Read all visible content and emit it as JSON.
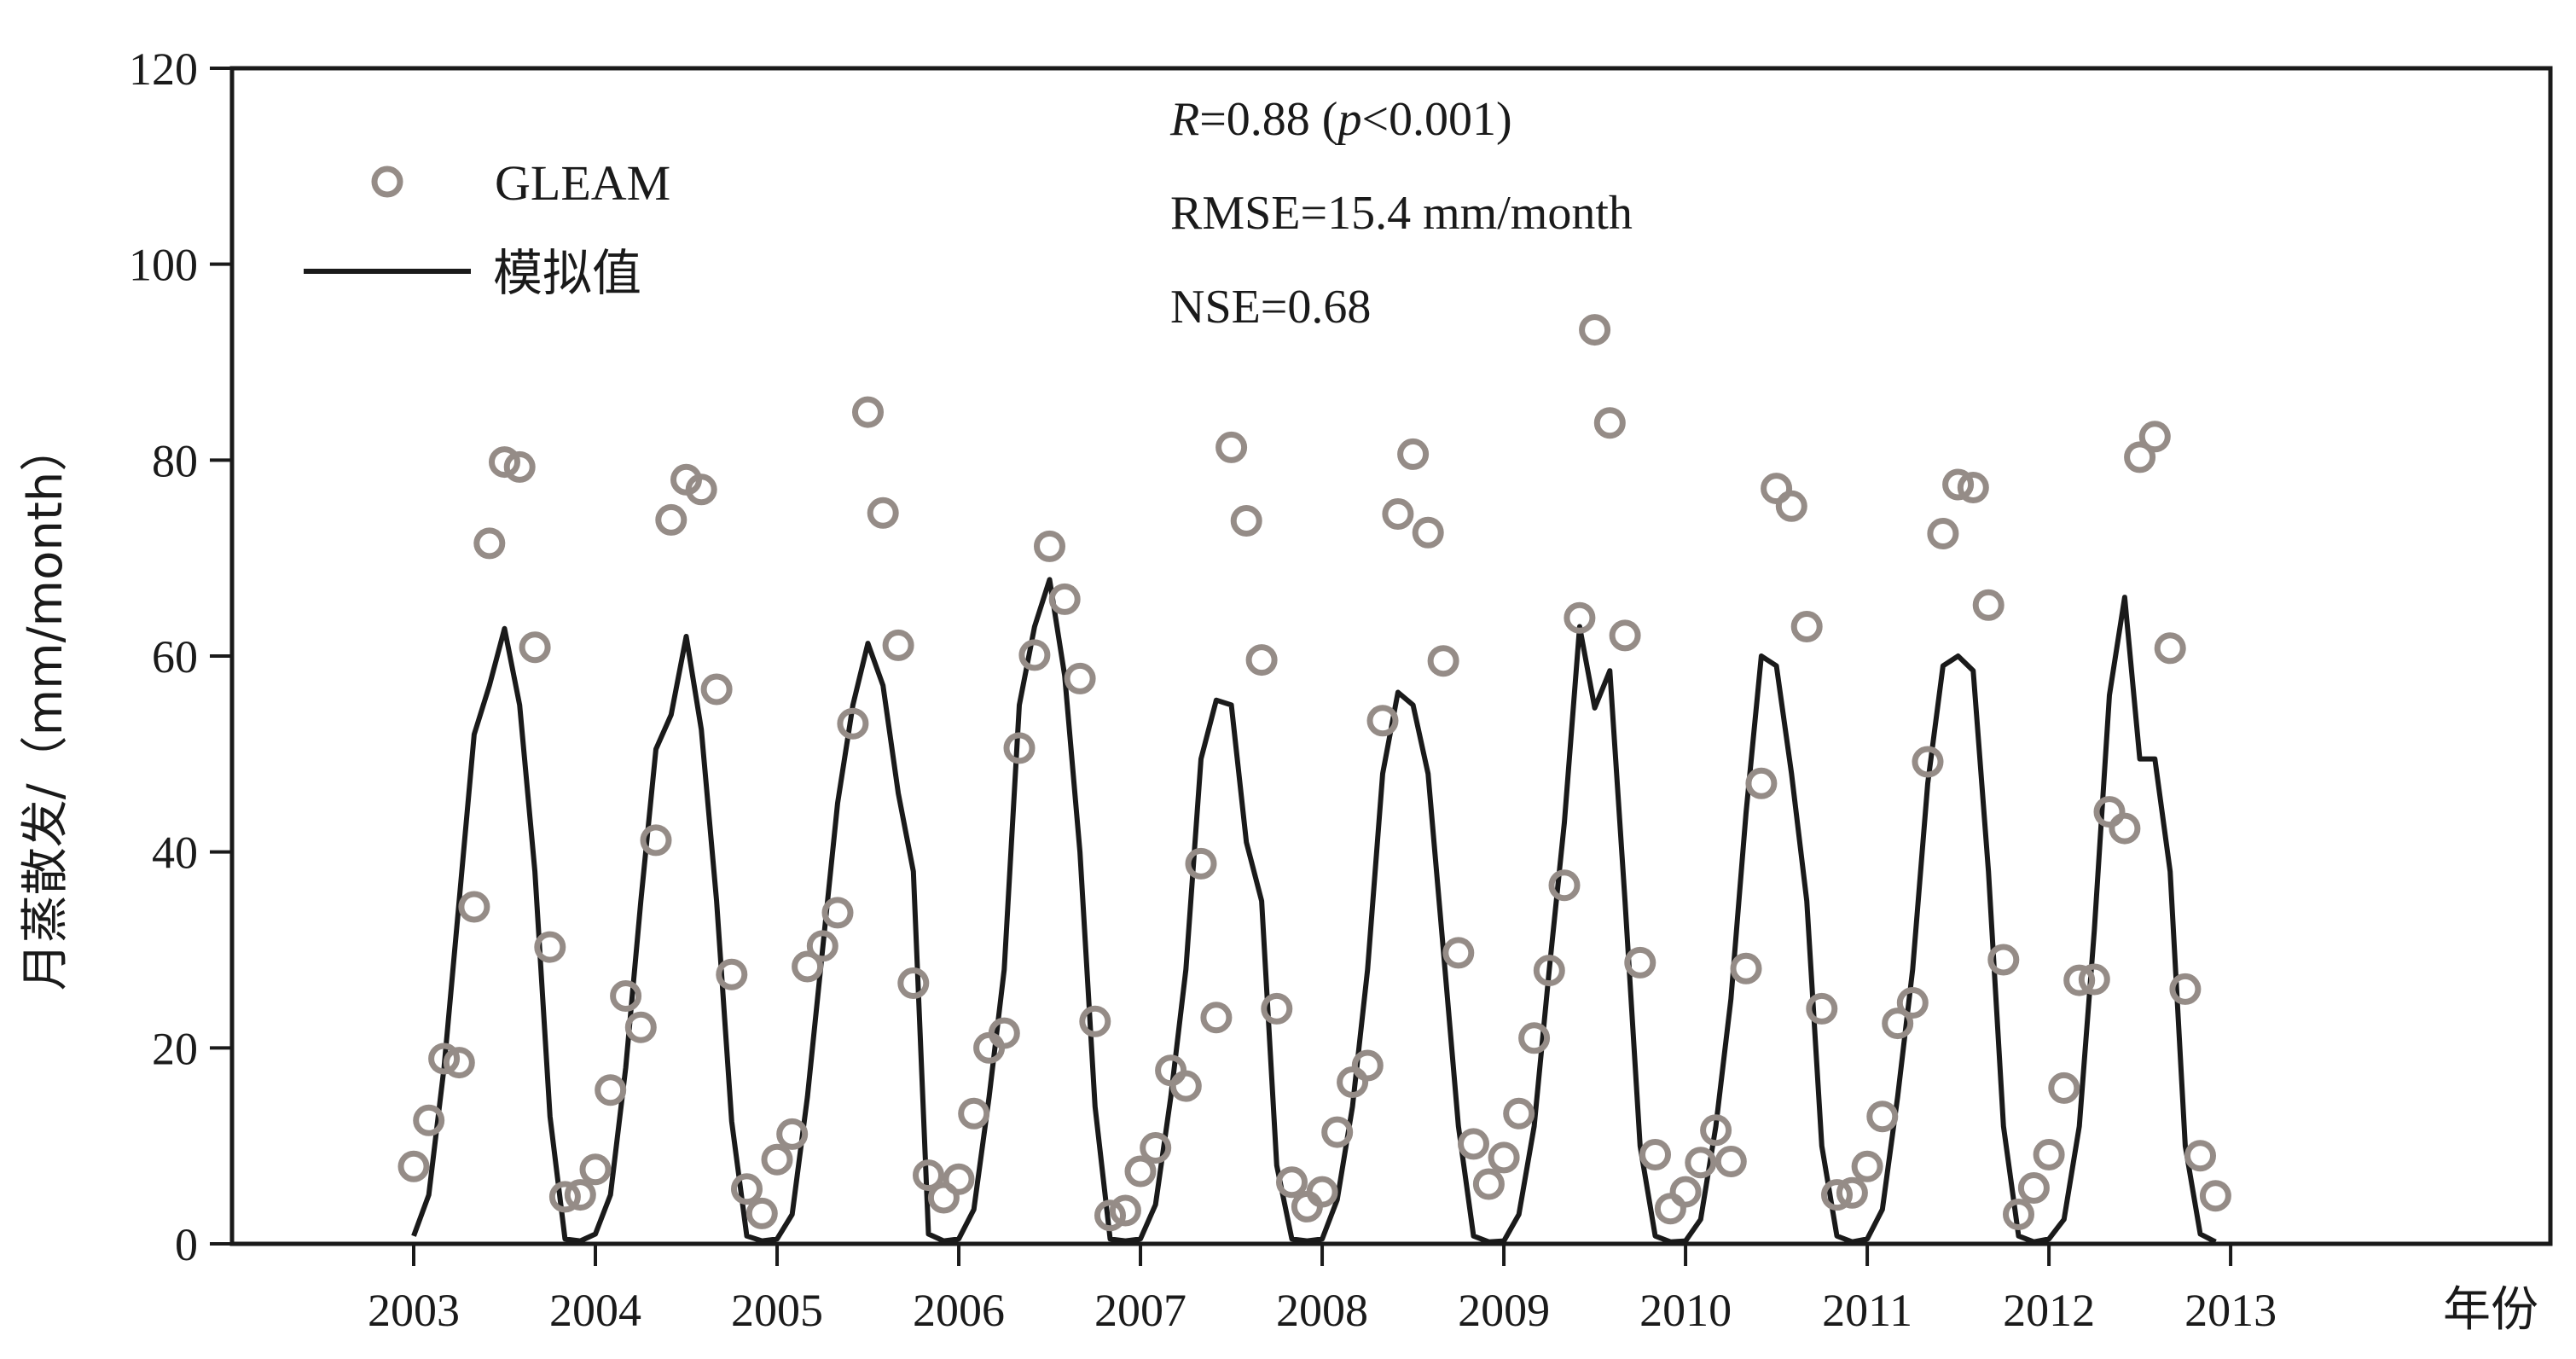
{
  "chart_data": {
    "type": "line",
    "ylabel": "月蒸散发/（mm/month）",
    "xlabel": "年份",
    "ylim": [
      0,
      120
    ],
    "xlim": [
      2002.0,
      2014.76
    ],
    "yticks": [
      0,
      20,
      40,
      60,
      80,
      100,
      120
    ],
    "xticks": [
      2003,
      2004,
      2005,
      2006,
      2007,
      2008,
      2009,
      2010,
      2011,
      2012,
      2013
    ],
    "legend_position": "top-left",
    "annotations": {
      "r_label": "R",
      "r_text": "=0.88 (",
      "p_label": "p",
      "p_text": "<0.001)",
      "rmse": "RMSE=15.4 mm/month",
      "nse": "NSE=0.68"
    },
    "series": [
      {
        "name": "GLEAM",
        "style": "markers",
        "color": "#958c87",
        "x": [
          2003.0,
          2003.083,
          2003.167,
          2003.25,
          2003.333,
          2003.417,
          2003.5,
          2003.583,
          2003.667,
          2003.75,
          2003.833,
          2003.917,
          2004.0,
          2004.083,
          2004.167,
          2004.25,
          2004.333,
          2004.417,
          2004.5,
          2004.583,
          2004.667,
          2004.75,
          2004.833,
          2004.917,
          2005.0,
          2005.083,
          2005.167,
          2005.25,
          2005.333,
          2005.417,
          2005.5,
          2005.583,
          2005.667,
          2005.75,
          2005.833,
          2005.917,
          2006.0,
          2006.083,
          2006.167,
          2006.25,
          2006.333,
          2006.417,
          2006.5,
          2006.583,
          2006.667,
          2006.75,
          2006.833,
          2006.917,
          2007.0,
          2007.083,
          2007.167,
          2007.25,
          2007.333,
          2007.417,
          2007.5,
          2007.583,
          2007.667,
          2007.75,
          2007.833,
          2007.917,
          2008.0,
          2008.083,
          2008.167,
          2008.25,
          2008.333,
          2008.417,
          2008.5,
          2008.583,
          2008.667,
          2008.75,
          2008.833,
          2008.917,
          2009.0,
          2009.083,
          2009.167,
          2009.25,
          2009.333,
          2009.417,
          2009.5,
          2009.583,
          2009.667,
          2009.75,
          2009.833,
          2009.917,
          2010.0,
          2010.083,
          2010.167,
          2010.25,
          2010.333,
          2010.417,
          2010.5,
          2010.583,
          2010.667,
          2010.75,
          2010.833,
          2010.917,
          2011.0,
          2011.083,
          2011.167,
          2011.25,
          2011.333,
          2011.417,
          2011.5,
          2011.583,
          2011.667,
          2011.75,
          2011.833,
          2011.917,
          2012.0,
          2012.083,
          2012.167,
          2012.25,
          2012.333,
          2012.417,
          2012.5,
          2012.583,
          2012.667,
          2012.75,
          2012.833,
          2012.917
        ],
        "y": [
          7.9,
          12.6,
          18.9,
          18.5,
          34.4,
          71.5,
          79.8,
          79.3,
          60.9,
          30.3,
          4.8,
          5.0,
          7.6,
          15.7,
          25.3,
          22.1,
          41.2,
          73.9,
          78.0,
          77.0,
          56.6,
          27.5,
          5.6,
          3.1,
          8.6,
          11.2,
          28.3,
          30.4,
          33.8,
          53.1,
          84.9,
          74.6,
          61.1,
          26.6,
          7.0,
          4.7,
          6.6,
          13.3,
          20.0,
          21.5,
          50.6,
          60.1,
          71.2,
          65.8,
          57.7,
          22.7,
          2.9,
          3.4,
          7.4,
          9.8,
          17.7,
          16.1,
          38.8,
          23.1,
          81.3,
          73.8,
          59.6,
          24.0,
          6.3,
          3.8,
          5.3,
          11.4,
          16.5,
          18.2,
          53.4,
          74.5,
          80.6,
          72.6,
          59.5,
          29.7,
          10.2,
          6.1,
          8.8,
          13.3,
          21.0,
          27.9,
          36.6,
          63.9,
          93.3,
          83.8,
          62.1,
          28.7,
          9.1,
          3.6,
          5.3,
          8.3,
          11.6,
          8.4,
          28.1,
          47.0,
          77.1,
          75.3,
          63.0,
          24.0,
          5.0,
          5.2,
          7.9,
          13.0,
          22.5,
          24.6,
          49.2,
          72.5,
          77.5,
          77.2,
          65.2,
          29.0,
          3.0,
          5.7,
          9.1,
          15.9,
          26.9,
          27.0,
          44.1,
          42.4,
          80.3,
          82.4,
          60.8,
          26.0,
          9.0,
          4.9
        ]
      },
      {
        "name": "模拟值",
        "style": "line",
        "color": "#1a1a1a",
        "x": [
          2003.0,
          2003.083,
          2003.167,
          2003.25,
          2003.333,
          2003.417,
          2003.5,
          2003.583,
          2003.667,
          2003.75,
          2003.833,
          2003.917,
          2004.0,
          2004.083,
          2004.167,
          2004.25,
          2004.333,
          2004.417,
          2004.5,
          2004.583,
          2004.667,
          2004.75,
          2004.833,
          2004.917,
          2005.0,
          2005.083,
          2005.167,
          2005.25,
          2005.333,
          2005.417,
          2005.5,
          2005.583,
          2005.667,
          2005.75,
          2005.833,
          2005.917,
          2006.0,
          2006.083,
          2006.167,
          2006.25,
          2006.333,
          2006.417,
          2006.5,
          2006.583,
          2006.667,
          2006.75,
          2006.833,
          2006.917,
          2007.0,
          2007.083,
          2007.167,
          2007.25,
          2007.333,
          2007.417,
          2007.5,
          2007.583,
          2007.667,
          2007.75,
          2007.833,
          2007.917,
          2008.0,
          2008.083,
          2008.167,
          2008.25,
          2008.333,
          2008.417,
          2008.5,
          2008.583,
          2008.667,
          2008.75,
          2008.833,
          2008.917,
          2009.0,
          2009.083,
          2009.167,
          2009.25,
          2009.333,
          2009.417,
          2009.5,
          2009.583,
          2009.667,
          2009.75,
          2009.833,
          2009.917,
          2010.0,
          2010.083,
          2010.167,
          2010.25,
          2010.333,
          2010.417,
          2010.5,
          2010.583,
          2010.667,
          2010.75,
          2010.833,
          2010.917,
          2011.0,
          2011.083,
          2011.167,
          2011.25,
          2011.333,
          2011.417,
          2011.5,
          2011.583,
          2011.667,
          2011.75,
          2011.833,
          2011.917,
          2012.0,
          2012.083,
          2012.167,
          2012.25,
          2012.333,
          2012.417,
          2012.5,
          2012.583,
          2012.667,
          2012.75,
          2012.833,
          2012.917
        ],
        "y": [
          0.8,
          5.0,
          18.0,
          35.0,
          52.0,
          57.0,
          62.8,
          55.0,
          38.0,
          13.0,
          0.5,
          0.3,
          1.0,
          5.0,
          18.0,
          35.0,
          50.5,
          54.0,
          62.0,
          52.5,
          35.0,
          12.5,
          0.8,
          0.3,
          0.5,
          3.0,
          15.0,
          30.0,
          45.0,
          55.0,
          61.3,
          57.0,
          46.0,
          38.0,
          1.0,
          0.3,
          0.5,
          3.5,
          15.0,
          28.0,
          55.0,
          63.0,
          67.8,
          58.0,
          40.0,
          14.0,
          0.5,
          0.3,
          0.5,
          4.0,
          15.0,
          28.0,
          49.5,
          55.5,
          55.0,
          41.0,
          35.0,
          8.0,
          0.5,
          0.3,
          0.5,
          4.5,
          14.0,
          28.0,
          48.0,
          56.3,
          55.0,
          48.0,
          30.0,
          12.0,
          0.8,
          0.2,
          0.3,
          3.0,
          12.0,
          28.0,
          43.0,
          63.0,
          54.7,
          58.5,
          35.0,
          10.0,
          0.8,
          0.2,
          0.3,
          2.5,
          12.0,
          25.0,
          44.0,
          60.0,
          59.0,
          48.0,
          35.0,
          10.0,
          0.8,
          0.2,
          0.5,
          3.5,
          15.0,
          28.0,
          47.0,
          59.0,
          60.0,
          58.5,
          38.0,
          12.0,
          0.8,
          0.2,
          0.5,
          2.5,
          12.0,
          32.0,
          56.0,
          66.0,
          49.5,
          49.5,
          38.0,
          10.0,
          1.0,
          0.2
        ]
      }
    ]
  }
}
